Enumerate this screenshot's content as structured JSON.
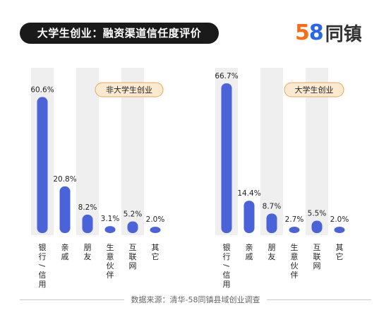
{
  "header": {
    "title": "大学生创业：融资渠道信任度评价",
    "logo_number_1": "5",
    "logo_number_2": "8",
    "logo_text": "同镇"
  },
  "colors": {
    "bar": "#4a63d8",
    "column_bg": "#efefef",
    "legend_bg": "#fbe9d0",
    "legend_border": "#e9a65e",
    "logo_orange": "#ff6a14",
    "logo_blue": "#2b66e8"
  },
  "chart_data": [
    {
      "type": "bar",
      "legend": "非大学生创业",
      "categories": [
        "银行/信用社",
        "亲戚",
        "朋友",
        "生意伙伴",
        "互联网",
        "其它"
      ],
      "values": [
        60.6,
        20.8,
        8.2,
        3.1,
        5.2,
        2.0
      ],
      "value_labels": [
        "60.6%",
        "20.8%",
        "8.2%",
        "3.1%",
        "5.2%",
        "2.0%"
      ],
      "ylim": [
        0,
        70
      ],
      "grid": false
    },
    {
      "type": "bar",
      "legend": "大学生创业",
      "categories": [
        "银行/信用社",
        "亲戚",
        "朋友",
        "生意伙伴",
        "互联网",
        "其它"
      ],
      "values": [
        66.7,
        14.4,
        8.7,
        2.7,
        5.5,
        2.0
      ],
      "value_labels": [
        "66.7%",
        "14.4%",
        "8.7%",
        "2.7%",
        "5.5%",
        "2.0%"
      ],
      "ylim": [
        0,
        70
      ],
      "grid": false
    }
  ],
  "footer": {
    "source": "数据来源：清华-58同镇县域创业调查"
  }
}
